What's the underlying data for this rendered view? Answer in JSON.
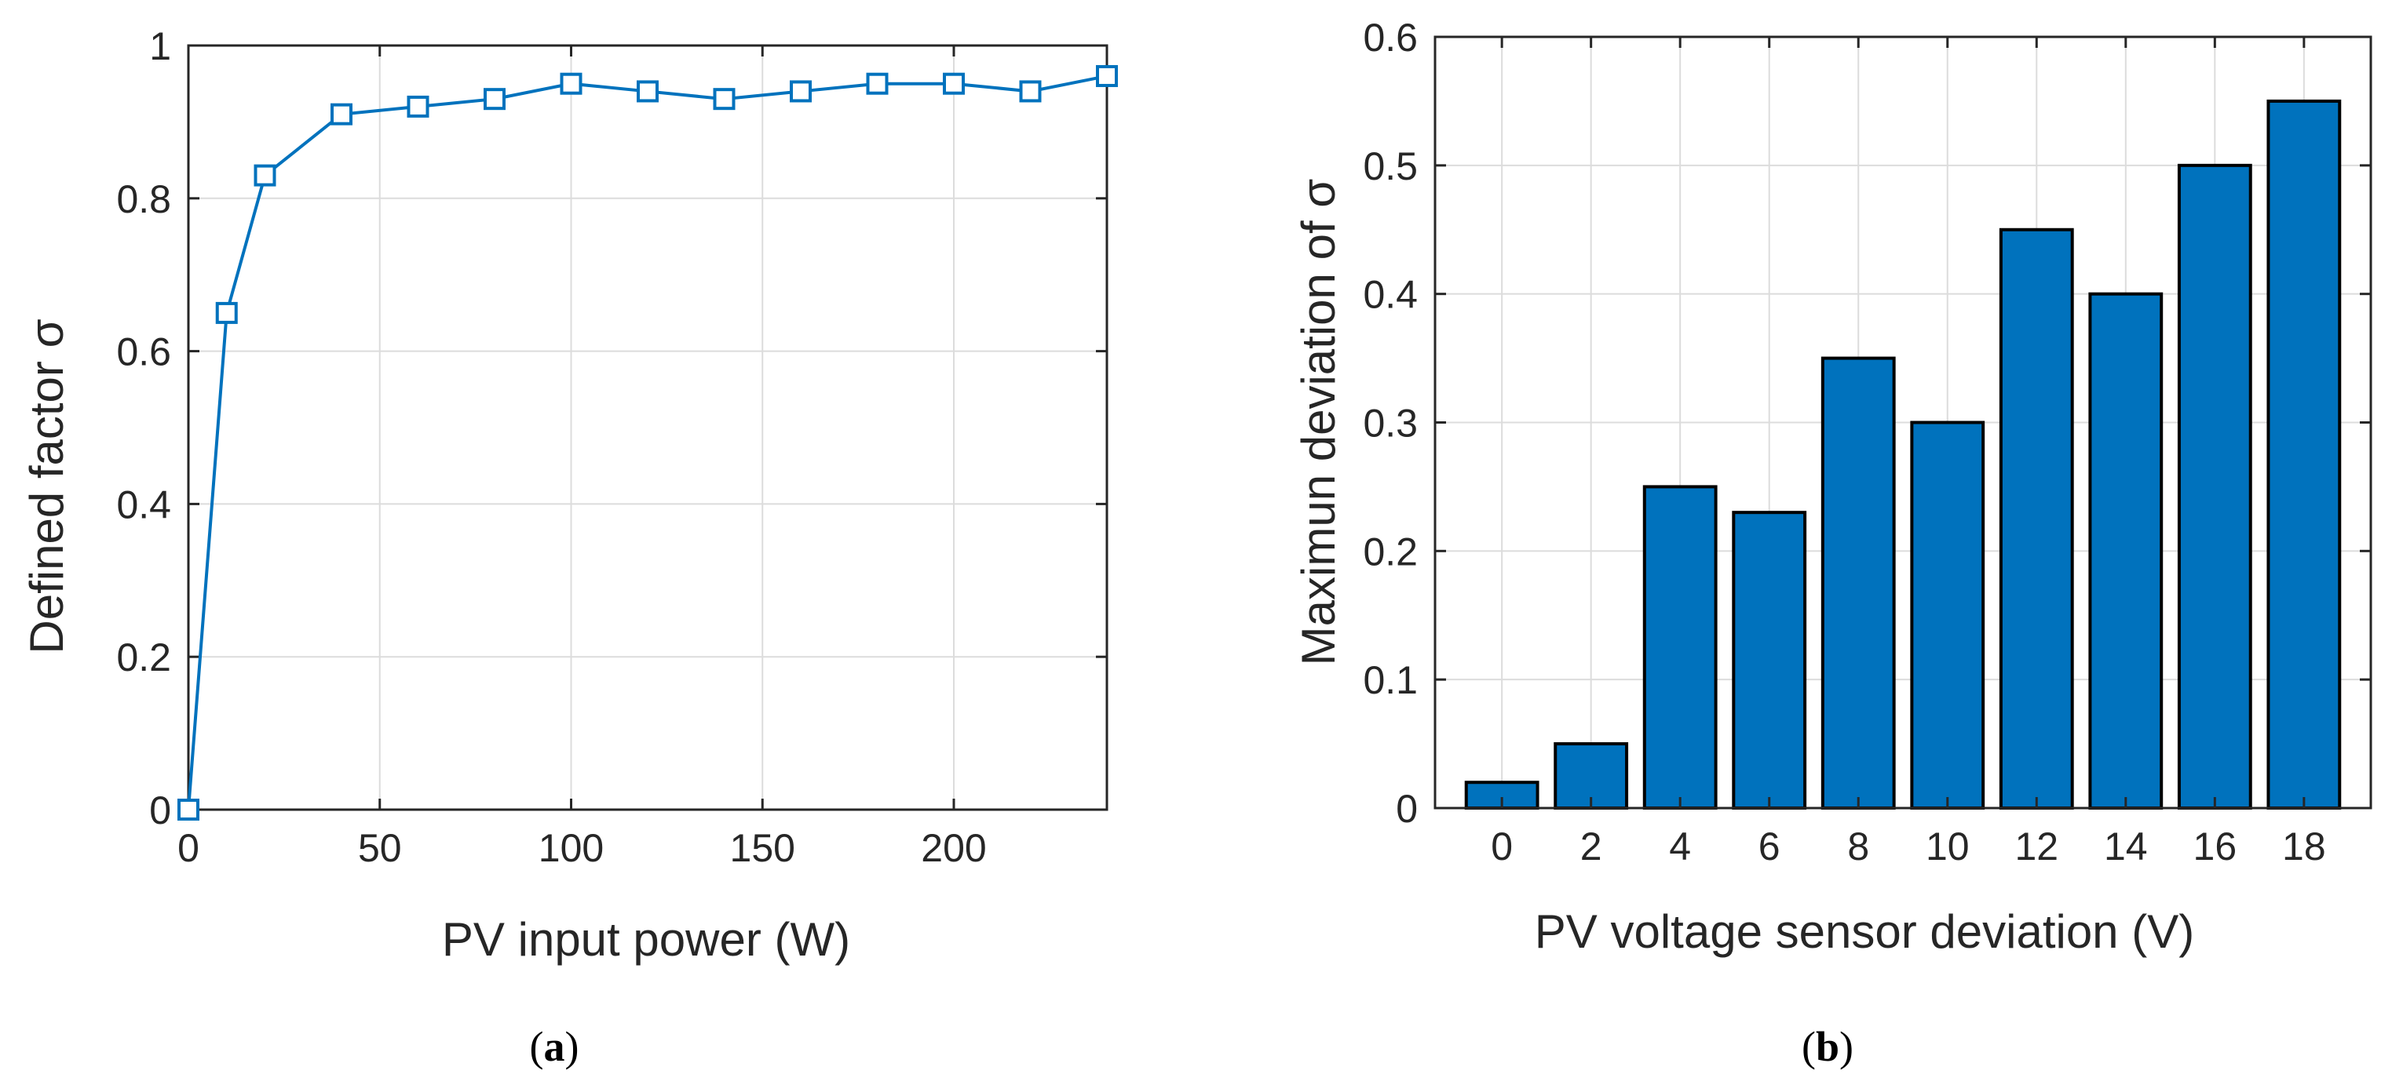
{
  "colors": {
    "series": "#0072bd",
    "axis": "#262626",
    "grid": "#dcdcdc",
    "bar_edge": "#000000"
  },
  "chart_data": [
    {
      "type": "line",
      "caption": {
        "open": "(",
        "letter": "a",
        "close": ")"
      },
      "title": "",
      "xlabel": "PV input power (W)",
      "ylabel": "Defined factor σ",
      "xlim": [
        0,
        240
      ],
      "ylim": [
        0,
        1
      ],
      "xticks": [
        0,
        50,
        100,
        150,
        200
      ],
      "yticks": [
        0,
        0.2,
        0.4,
        0.6,
        0.8,
        1
      ],
      "ytick_labels": [
        "0",
        "0.2",
        "0.4",
        "0.6",
        "0.8",
        "1"
      ],
      "grid": true,
      "marker": "square",
      "series": [
        {
          "x": [
            0,
            10,
            20,
            40,
            60,
            80,
            100,
            120,
            140,
            160,
            180,
            200,
            220,
            240
          ],
          "y": [
            0,
            0.65,
            0.83,
            0.91,
            0.92,
            0.93,
            0.95,
            0.94,
            0.93,
            0.94,
            0.95,
            0.95,
            0.94,
            0.96
          ]
        }
      ]
    },
    {
      "type": "bar",
      "caption": {
        "open": "(",
        "letter": "b",
        "close": ")"
      },
      "title": "",
      "xlabel": "PV voltage sensor deviation (V)",
      "ylabel": "Maximun deviation of σ",
      "ylim": [
        0,
        0.6
      ],
      "yticks": [
        0,
        0.1,
        0.2,
        0.3,
        0.4,
        0.5,
        0.6
      ],
      "ytick_labels": [
        "0",
        "0.1",
        "0.2",
        "0.3",
        "0.4",
        "0.5",
        "0.6"
      ],
      "grid": true,
      "categories": [
        "0",
        "2",
        "4",
        "6",
        "8",
        "10",
        "12",
        "14",
        "16",
        "18"
      ],
      "values": [
        0.02,
        0.05,
        0.25,
        0.23,
        0.35,
        0.3,
        0.45,
        0.4,
        0.5,
        0.55
      ]
    }
  ]
}
